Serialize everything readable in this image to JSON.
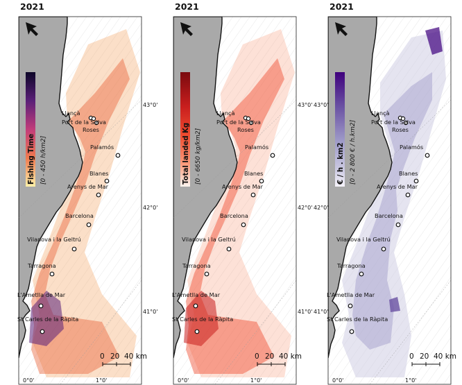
{
  "panels": [
    {
      "year": "2021",
      "legend_title": "Fishing Time",
      "legend_range": "[0 - 450 h/km2]",
      "colors": {
        "top": "#0d0628",
        "mid1": "#5a1f78",
        "mid2": "#c23c7a",
        "mid3": "#f07a4f",
        "bottom": "#fff1a8"
      }
    },
    {
      "year": "2021",
      "legend_title": "Total landed Kg",
      "legend_range": "[0 - 6650 kg/km2]",
      "colors": {
        "top": "#7a0a0f",
        "mid1": "#c81e1e",
        "mid2": "#ef4b2f",
        "mid3": "#f99a7a",
        "bottom": "#fff5f0"
      }
    },
    {
      "year": "2021",
      "legend_title": "€ / h . km2",
      "legend_range": "[0 - 2 800 € / h.km2]",
      "colors": {
        "top": "#3f007d",
        "mid1": "#6a51a3",
        "mid2": "#9e9ac8",
        "mid3": "#cbc9e2",
        "bottom": "#f7f4fb"
      }
    }
  ],
  "ports": [
    "Llançà",
    "Port de la Selva",
    "Roses",
    "Palamós",
    "Blanes",
    "Arenys de Mar",
    "Barcelona",
    "Vilanova i la Geltrú",
    "Tarragona",
    "L'Ametlla de Mar",
    "St Carles de la Ràpita"
  ],
  "latitude_labels": [
    "43°0'",
    "42°0'",
    "41°0'"
  ],
  "longitude_labels": [
    "0°0'",
    "1°0'"
  ],
  "scale_bar": {
    "labels": [
      "0",
      "20",
      "40 km"
    ]
  },
  "map_colors": {
    "land": "#a9a9a9",
    "sea": "#ffffff",
    "coast": "#111111",
    "bathy": "#d9d9d9"
  }
}
